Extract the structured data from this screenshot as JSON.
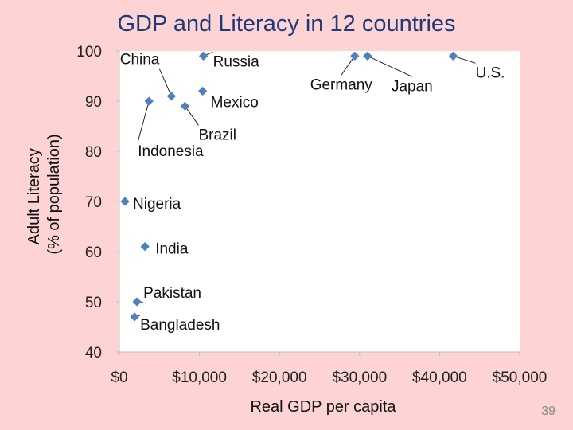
{
  "slide": {
    "title": "GDP and Literacy in 12 countries",
    "number": "39"
  },
  "colors": {
    "background": "#fdd3d3",
    "plot_area": "#ffffff",
    "marker": "#4f81bd",
    "title": "#1f3a7a"
  },
  "chart_data": {
    "type": "scatter",
    "title": "GDP and Literacy in 12 countries",
    "xlabel": "Real GDP per capita",
    "ylabel_lines": [
      "Adult Literacy",
      "(% of population)"
    ],
    "xlim": [
      0,
      50000
    ],
    "ylim": [
      40,
      100
    ],
    "x_ticks": [
      0,
      10000,
      20000,
      30000,
      40000,
      50000
    ],
    "x_tick_labels": [
      "$0",
      "$10,000",
      "$20,000",
      "$30,000",
      "$40,000",
      "$50,000"
    ],
    "y_ticks": [
      40,
      50,
      60,
      70,
      80,
      90,
      100
    ],
    "y_tick_labels": [
      "40",
      "50",
      "60",
      "70",
      "80",
      "90",
      "100"
    ],
    "grid": false,
    "points": [
      {
        "label": "China",
        "x": 6500,
        "y": 91
      },
      {
        "label": "Russia",
        "x": 10500,
        "y": 99
      },
      {
        "label": "Mexico",
        "x": 10400,
        "y": 92
      },
      {
        "label": "Germany",
        "x": 29400,
        "y": 99
      },
      {
        "label": "Japan",
        "x": 31000,
        "y": 99
      },
      {
        "label": "U.S.",
        "x": 41700,
        "y": 99
      },
      {
        "label": "Brazil",
        "x": 8200,
        "y": 89
      },
      {
        "label": "Indonesia",
        "x": 3700,
        "y": 90
      },
      {
        "label": "Nigeria",
        "x": 700,
        "y": 70
      },
      {
        "label": "India",
        "x": 3200,
        "y": 61
      },
      {
        "label": "Pakistan",
        "x": 2200,
        "y": 50
      },
      {
        "label": "Bangladesh",
        "x": 1900,
        "y": 47
      }
    ]
  }
}
